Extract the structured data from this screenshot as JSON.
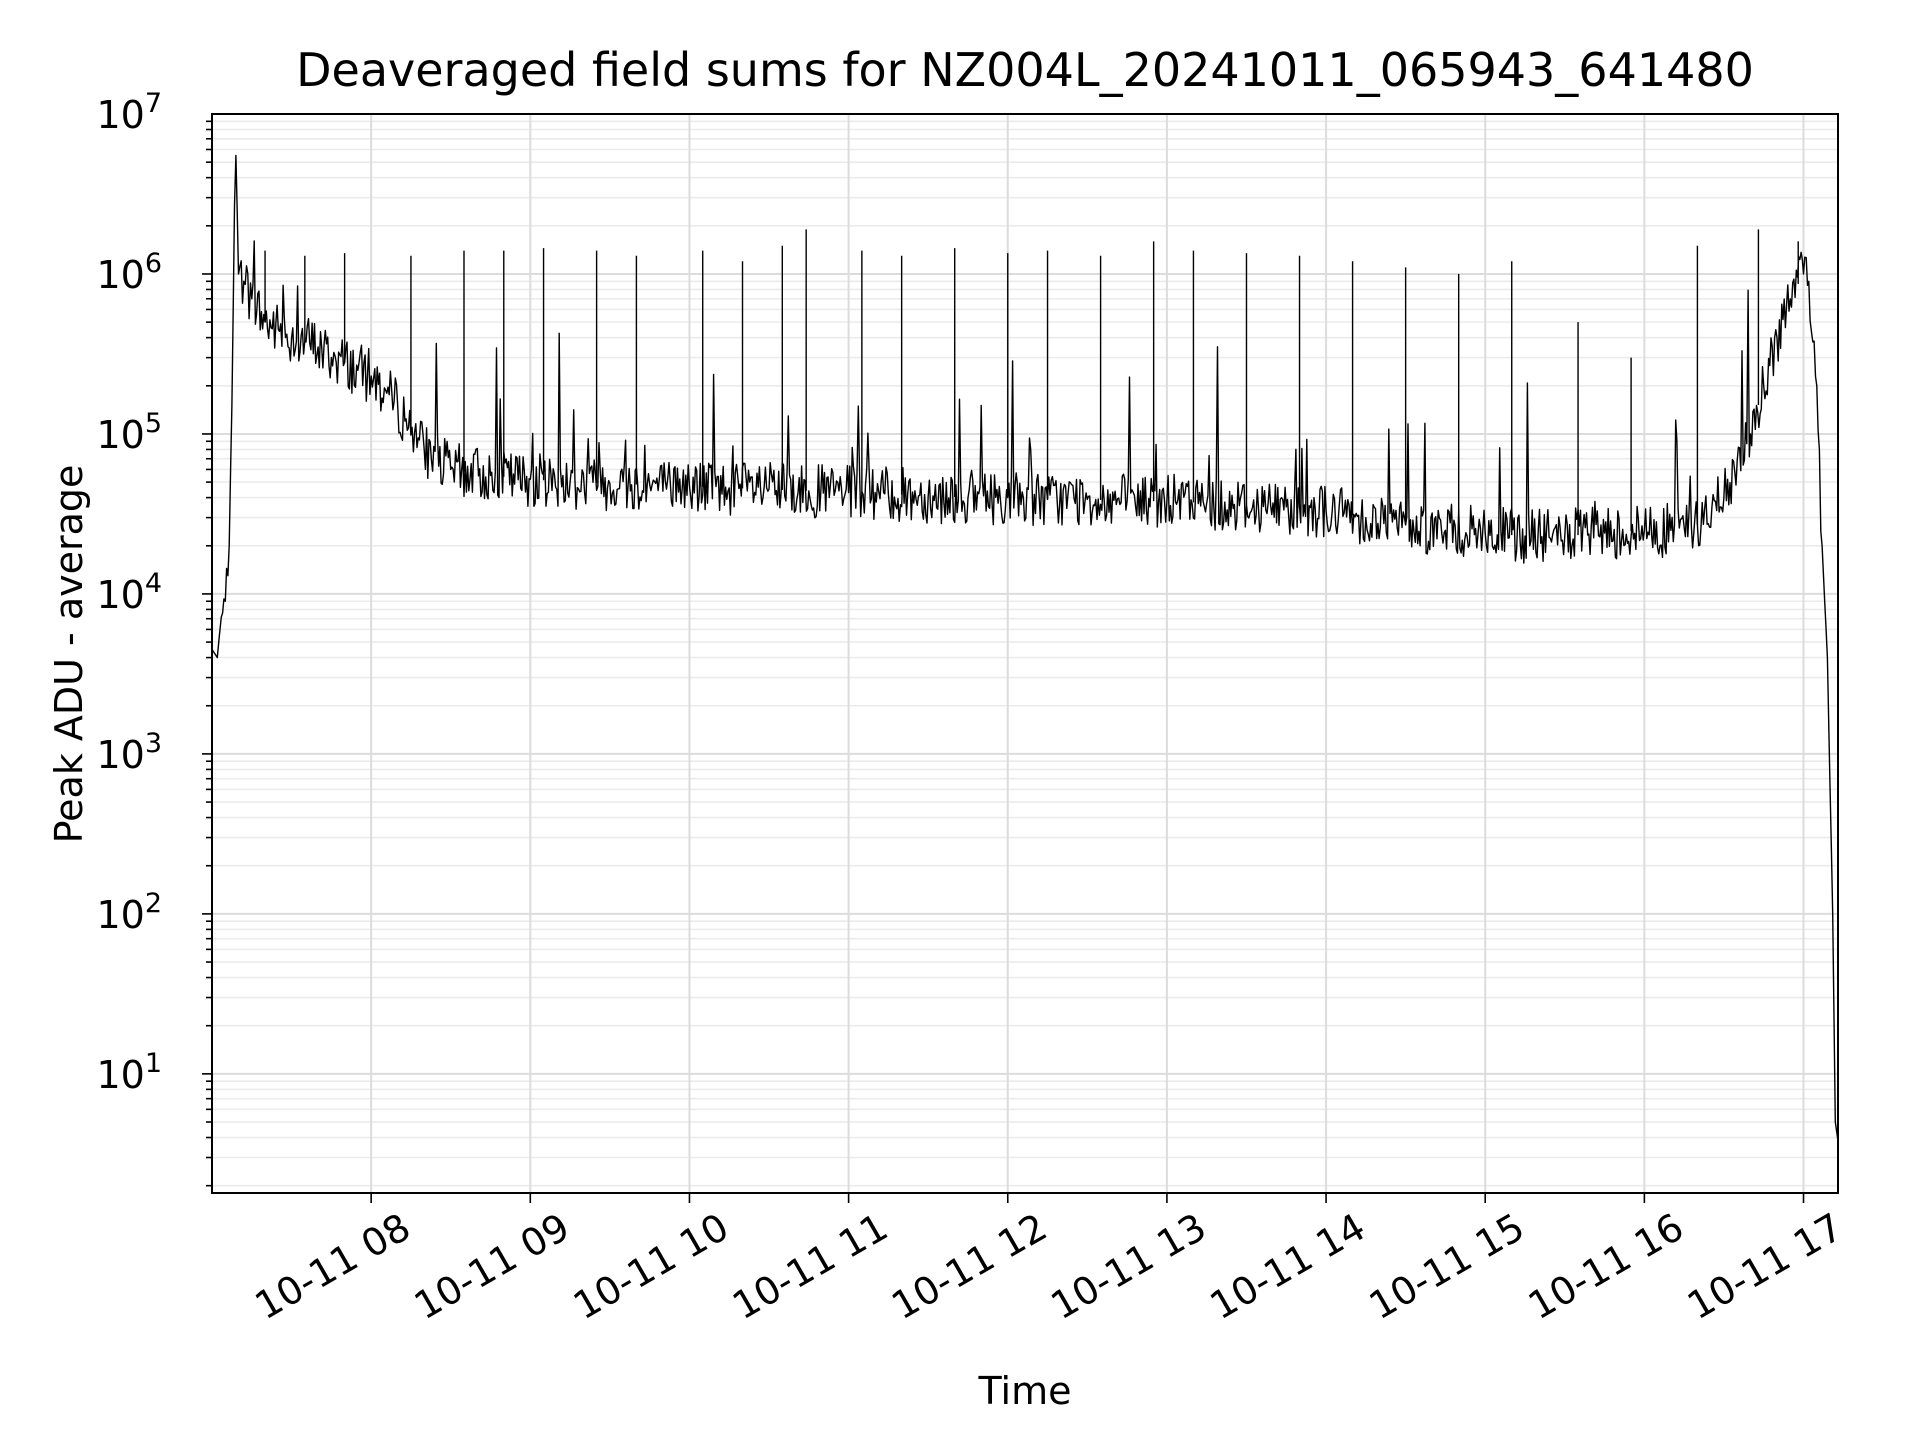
{
  "chart_data": {
    "type": "line",
    "title": "Deaveraged field sums for NZ004L_20241011_065943_641480",
    "xlabel": "Time",
    "ylabel": "Peak ADU - average",
    "yscale": "log",
    "ylim": [
      1.8,
      10000000
    ],
    "xlim": [
      "2024-10-11 07:00",
      "2024-10-11 17:13"
    ],
    "x_ticks": [
      {
        "t": "2024-10-11 08:00",
        "label": "10-11 08"
      },
      {
        "t": "2024-10-11 09:00",
        "label": "10-11 09"
      },
      {
        "t": "2024-10-11 10:00",
        "label": "10-11 10"
      },
      {
        "t": "2024-10-11 11:00",
        "label": "10-11 11"
      },
      {
        "t": "2024-10-11 12:00",
        "label": "10-11 12"
      },
      {
        "t": "2024-10-11 13:00",
        "label": "10-11 13"
      },
      {
        "t": "2024-10-11 14:00",
        "label": "10-11 14"
      },
      {
        "t": "2024-10-11 15:00",
        "label": "10-11 15"
      },
      {
        "t": "2024-10-11 16:00",
        "label": "10-11 16"
      },
      {
        "t": "2024-10-11 17:00",
        "label": "10-11 17"
      }
    ],
    "y_ticks": [
      {
        "value": 10,
        "base": "10",
        "exp": "1"
      },
      {
        "value": 100,
        "base": "10",
        "exp": "2"
      },
      {
        "value": 1000,
        "base": "10",
        "exp": "3"
      },
      {
        "value": 10000,
        "base": "10",
        "exp": "4"
      },
      {
        "value": 100000,
        "base": "10",
        "exp": "5"
      },
      {
        "value": 1000000,
        "base": "10",
        "exp": "6"
      },
      {
        "value": 10000000,
        "base": "10",
        "exp": "7"
      }
    ],
    "grid": true,
    "series": [
      {
        "color": "#000000",
        "x": [
          "2024-10-11 07:00",
          "2024-10-11 07:02",
          "2024-10-11 07:03",
          "2024-10-11 07:05",
          "2024-10-11 07:06",
          "2024-10-11 07:07",
          "2024-10-11 07:08",
          "2024-10-11 07:09",
          "2024-10-11 07:10",
          "2024-10-11 07:12",
          "2024-10-11 07:15",
          "2024-10-11 07:20",
          "2024-10-11 07:25",
          "2024-10-11 07:30",
          "2024-10-11 07:35",
          "2024-10-11 07:40",
          "2024-10-11 07:45",
          "2024-10-11 07:50",
          "2024-10-11 07:55",
          "2024-10-11 08:00",
          "2024-10-11 08:10",
          "2024-10-11 08:20",
          "2024-10-11 08:30",
          "2024-10-11 08:45",
          "2024-10-11 09:00",
          "2024-10-11 09:15",
          "2024-10-11 09:30",
          "2024-10-11 09:45",
          "2024-10-11 10:00",
          "2024-10-11 10:15",
          "2024-10-11 10:30",
          "2024-10-11 10:45",
          "2024-10-11 11:00",
          "2024-10-11 11:15",
          "2024-10-11 11:30",
          "2024-10-11 11:45",
          "2024-10-11 12:00",
          "2024-10-11 12:15",
          "2024-10-11 12:30",
          "2024-10-11 12:45",
          "2024-10-11 13:00",
          "2024-10-11 13:15",
          "2024-10-11 13:30",
          "2024-10-11 13:45",
          "2024-10-11 14:00",
          "2024-10-11 14:15",
          "2024-10-11 14:30",
          "2024-10-11 14:45",
          "2024-10-11 15:00",
          "2024-10-11 15:15",
          "2024-10-11 15:30",
          "2024-10-11 15:45",
          "2024-10-11 16:00",
          "2024-10-11 16:10",
          "2024-10-11 16:20",
          "2024-10-11 16:30",
          "2024-10-11 16:40",
          "2024-10-11 16:45",
          "2024-10-11 16:50",
          "2024-10-11 16:55",
          "2024-10-11 17:00",
          "2024-10-11 17:02",
          "2024-10-11 17:05",
          "2024-10-11 17:07",
          "2024-10-11 17:09",
          "2024-10-11 17:11",
          "2024-10-11 17:12",
          "2024-10-11 17:13"
        ],
        "y": [
          4500,
          4000,
          6000,
          9000,
          13000,
          60000,
          600000,
          5500000,
          1000000,
          900000,
          700000,
          500000,
          450000,
          400000,
          380000,
          350000,
          300000,
          280000,
          250000,
          230000,
          150000,
          80000,
          60000,
          55000,
          52000,
          50000,
          49000,
          48000,
          47000,
          46000,
          45000,
          44000,
          43000,
          42000,
          41000,
          40000,
          40000,
          39000,
          39000,
          38000,
          38000,
          37000,
          36000,
          35000,
          33000,
          30000,
          27000,
          25000,
          24000,
          23000,
          23000,
          24000,
          25000,
          25000,
          27000,
          40000,
          100000,
          200000,
          400000,
          700000,
          1000000,
          900000,
          200000,
          20000,
          4000,
          100,
          5,
          3.8
        ]
      }
    ],
    "spikes": [
      {
        "x": "2024-10-11 07:20",
        "y": 1400000
      },
      {
        "x": "2024-10-11 07:35",
        "y": 1300000
      },
      {
        "x": "2024-10-11 07:50",
        "y": 1350000
      },
      {
        "x": "2024-10-11 08:15",
        "y": 1300000
      },
      {
        "x": "2024-10-11 08:35",
        "y": 1400000
      },
      {
        "x": "2024-10-11 08:50",
        "y": 1400000
      },
      {
        "x": "2024-10-11 09:05",
        "y": 1450000
      },
      {
        "x": "2024-10-11 09:25",
        "y": 1400000
      },
      {
        "x": "2024-10-11 09:40",
        "y": 1300000
      },
      {
        "x": "2024-10-11 10:05",
        "y": 1400000
      },
      {
        "x": "2024-10-11 10:20",
        "y": 1200000
      },
      {
        "x": "2024-10-11 10:35",
        "y": 1500000
      },
      {
        "x": "2024-10-11 10:44",
        "y": 1900000
      },
      {
        "x": "2024-10-11 11:05",
        "y": 1400000
      },
      {
        "x": "2024-10-11 11:20",
        "y": 1300000
      },
      {
        "x": "2024-10-11 11:40",
        "y": 1450000
      },
      {
        "x": "2024-10-11 12:00",
        "y": 1350000
      },
      {
        "x": "2024-10-11 12:15",
        "y": 1400000
      },
      {
        "x": "2024-10-11 12:35",
        "y": 1300000
      },
      {
        "x": "2024-10-11 12:55",
        "y": 1600000
      },
      {
        "x": "2024-10-11 13:10",
        "y": 1400000
      },
      {
        "x": "2024-10-11 13:30",
        "y": 1350000
      },
      {
        "x": "2024-10-11 13:50",
        "y": 1300000
      },
      {
        "x": "2024-10-11 14:10",
        "y": 1200000
      },
      {
        "x": "2024-10-11 14:30",
        "y": 1100000
      },
      {
        "x": "2024-10-11 14:50",
        "y": 1000000
      },
      {
        "x": "2024-10-11 15:10",
        "y": 1200000
      },
      {
        "x": "2024-10-11 15:35",
        "y": 500000
      },
      {
        "x": "2024-10-11 15:55",
        "y": 300000
      },
      {
        "x": "2024-10-11 16:20",
        "y": 1500000
      },
      {
        "x": "2024-10-11 16:43",
        "y": 1900000
      },
      {
        "x": "2024-10-11 16:58",
        "y": 1600000
      }
    ]
  }
}
